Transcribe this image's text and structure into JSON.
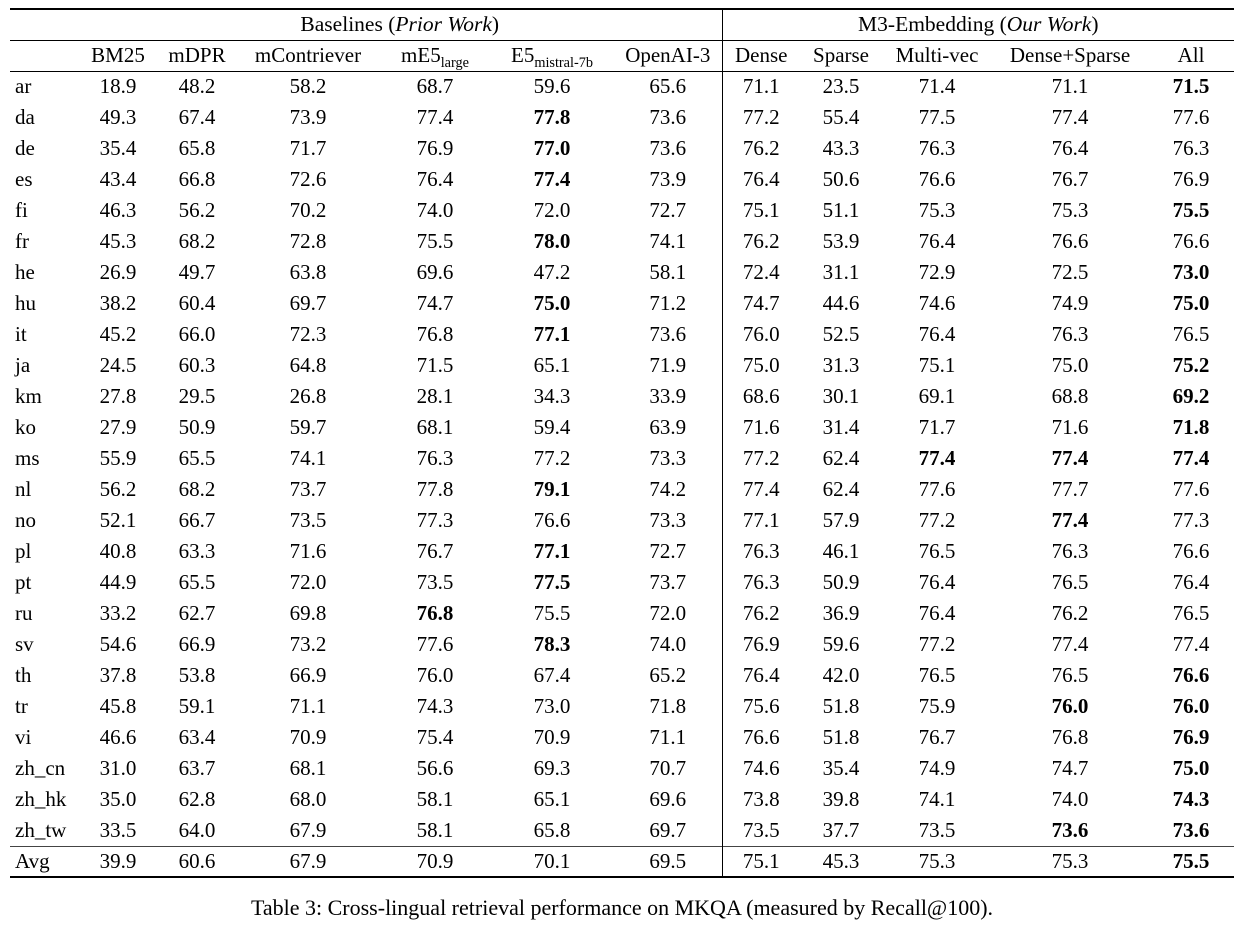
{
  "caption": "Table 3: Cross-lingual retrieval performance on MKQA (measured by Recall@100).",
  "table": {
    "groups": [
      {
        "prefix": "Baselines (",
        "italic": "Prior Work",
        "suffix": ")"
      },
      {
        "prefix": "M3-Embedding (",
        "italic": "Our Work",
        "suffix": ")"
      }
    ],
    "columns": [
      {
        "text": "BM25",
        "sub": ""
      },
      {
        "text": "mDPR",
        "sub": ""
      },
      {
        "text": "mContriever",
        "sub": ""
      },
      {
        "text": "mE5",
        "sub": "large"
      },
      {
        "text": "E5",
        "sub": "mistral-7b"
      },
      {
        "text": "OpenAI-3",
        "sub": ""
      },
      {
        "text": "Dense",
        "sub": ""
      },
      {
        "text": "Sparse",
        "sub": ""
      },
      {
        "text": "Multi-vec",
        "sub": ""
      },
      {
        "text": "Dense+Sparse",
        "sub": ""
      },
      {
        "text": "All",
        "sub": ""
      }
    ],
    "rows": [
      {
        "lang": "ar",
        "values": [
          "18.9",
          "48.2",
          "58.2",
          "68.7",
          "59.6",
          "65.6",
          "71.1",
          "23.5",
          "71.4",
          "71.1",
          "71.5"
        ],
        "bold": [
          10
        ]
      },
      {
        "lang": "da",
        "values": [
          "49.3",
          "67.4",
          "73.9",
          "77.4",
          "77.8",
          "73.6",
          "77.2",
          "55.4",
          "77.5",
          "77.4",
          "77.6"
        ],
        "bold": [
          4
        ]
      },
      {
        "lang": "de",
        "values": [
          "35.4",
          "65.8",
          "71.7",
          "76.9",
          "77.0",
          "73.6",
          "76.2",
          "43.3",
          "76.3",
          "76.4",
          "76.3"
        ],
        "bold": [
          4
        ]
      },
      {
        "lang": "es",
        "values": [
          "43.4",
          "66.8",
          "72.6",
          "76.4",
          "77.4",
          "73.9",
          "76.4",
          "50.6",
          "76.6",
          "76.7",
          "76.9"
        ],
        "bold": [
          4
        ]
      },
      {
        "lang": "fi",
        "values": [
          "46.3",
          "56.2",
          "70.2",
          "74.0",
          "72.0",
          "72.7",
          "75.1",
          "51.1",
          "75.3",
          "75.3",
          "75.5"
        ],
        "bold": [
          10
        ]
      },
      {
        "lang": "fr",
        "values": [
          "45.3",
          "68.2",
          "72.8",
          "75.5",
          "78.0",
          "74.1",
          "76.2",
          "53.9",
          "76.4",
          "76.6",
          "76.6"
        ],
        "bold": [
          4
        ]
      },
      {
        "lang": "he",
        "values": [
          "26.9",
          "49.7",
          "63.8",
          "69.6",
          "47.2",
          "58.1",
          "72.4",
          "31.1",
          "72.9",
          "72.5",
          "73.0"
        ],
        "bold": [
          10
        ]
      },
      {
        "lang": "hu",
        "values": [
          "38.2",
          "60.4",
          "69.7",
          "74.7",
          "75.0",
          "71.2",
          "74.7",
          "44.6",
          "74.6",
          "74.9",
          "75.0"
        ],
        "bold": [
          4,
          10
        ]
      },
      {
        "lang": "it",
        "values": [
          "45.2",
          "66.0",
          "72.3",
          "76.8",
          "77.1",
          "73.6",
          "76.0",
          "52.5",
          "76.4",
          "76.3",
          "76.5"
        ],
        "bold": [
          4
        ]
      },
      {
        "lang": "ja",
        "values": [
          "24.5",
          "60.3",
          "64.8",
          "71.5",
          "65.1",
          "71.9",
          "75.0",
          "31.3",
          "75.1",
          "75.0",
          "75.2"
        ],
        "bold": [
          10
        ]
      },
      {
        "lang": "km",
        "values": [
          "27.8",
          "29.5",
          "26.8",
          "28.1",
          "34.3",
          "33.9",
          "68.6",
          "30.1",
          "69.1",
          "68.8",
          "69.2"
        ],
        "bold": [
          10
        ]
      },
      {
        "lang": "ko",
        "values": [
          "27.9",
          "50.9",
          "59.7",
          "68.1",
          "59.4",
          "63.9",
          "71.6",
          "31.4",
          "71.7",
          "71.6",
          "71.8"
        ],
        "bold": [
          10
        ]
      },
      {
        "lang": "ms",
        "values": [
          "55.9",
          "65.5",
          "74.1",
          "76.3",
          "77.2",
          "73.3",
          "77.2",
          "62.4",
          "77.4",
          "77.4",
          "77.4"
        ],
        "bold": [
          8,
          9,
          10
        ]
      },
      {
        "lang": "nl",
        "values": [
          "56.2",
          "68.2",
          "73.7",
          "77.8",
          "79.1",
          "74.2",
          "77.4",
          "62.4",
          "77.6",
          "77.7",
          "77.6"
        ],
        "bold": [
          4
        ]
      },
      {
        "lang": "no",
        "values": [
          "52.1",
          "66.7",
          "73.5",
          "77.3",
          "76.6",
          "73.3",
          "77.1",
          "57.9",
          "77.2",
          "77.4",
          "77.3"
        ],
        "bold": [
          9
        ]
      },
      {
        "lang": "pl",
        "values": [
          "40.8",
          "63.3",
          "71.6",
          "76.7",
          "77.1",
          "72.7",
          "76.3",
          "46.1",
          "76.5",
          "76.3",
          "76.6"
        ],
        "bold": [
          4
        ]
      },
      {
        "lang": "pt",
        "values": [
          "44.9",
          "65.5",
          "72.0",
          "73.5",
          "77.5",
          "73.7",
          "76.3",
          "50.9",
          "76.4",
          "76.5",
          "76.4"
        ],
        "bold": [
          4
        ]
      },
      {
        "lang": "ru",
        "values": [
          "33.2",
          "62.7",
          "69.8",
          "76.8",
          "75.5",
          "72.0",
          "76.2",
          "36.9",
          "76.4",
          "76.2",
          "76.5"
        ],
        "bold": [
          3
        ]
      },
      {
        "lang": "sv",
        "values": [
          "54.6",
          "66.9",
          "73.2",
          "77.6",
          "78.3",
          "74.0",
          "76.9",
          "59.6",
          "77.2",
          "77.4",
          "77.4"
        ],
        "bold": [
          4
        ]
      },
      {
        "lang": "th",
        "values": [
          "37.8",
          "53.8",
          "66.9",
          "76.0",
          "67.4",
          "65.2",
          "76.4",
          "42.0",
          "76.5",
          "76.5",
          "76.6"
        ],
        "bold": [
          10
        ]
      },
      {
        "lang": "tr",
        "values": [
          "45.8",
          "59.1",
          "71.1",
          "74.3",
          "73.0",
          "71.8",
          "75.6",
          "51.8",
          "75.9",
          "76.0",
          "76.0"
        ],
        "bold": [
          9,
          10
        ]
      },
      {
        "lang": "vi",
        "values": [
          "46.6",
          "63.4",
          "70.9",
          "75.4",
          "70.9",
          "71.1",
          "76.6",
          "51.8",
          "76.7",
          "76.8",
          "76.9"
        ],
        "bold": [
          10
        ]
      },
      {
        "lang": "zh_cn",
        "values": [
          "31.0",
          "63.7",
          "68.1",
          "56.6",
          "69.3",
          "70.7",
          "74.6",
          "35.4",
          "74.9",
          "74.7",
          "75.0"
        ],
        "bold": [
          10
        ]
      },
      {
        "lang": "zh_hk",
        "values": [
          "35.0",
          "62.8",
          "68.0",
          "58.1",
          "65.1",
          "69.6",
          "73.8",
          "39.8",
          "74.1",
          "74.0",
          "74.3"
        ],
        "bold": [
          10
        ]
      },
      {
        "lang": "zh_tw",
        "values": [
          "33.5",
          "64.0",
          "67.9",
          "58.1",
          "65.8",
          "69.7",
          "73.5",
          "37.7",
          "73.5",
          "73.6",
          "73.6"
        ],
        "bold": [
          9,
          10
        ]
      }
    ],
    "avg_row": {
      "lang": "Avg",
      "values": [
        "39.9",
        "60.6",
        "67.9",
        "70.9",
        "70.1",
        "69.5",
        "75.1",
        "45.3",
        "75.3",
        "75.3",
        "75.5"
      ],
      "bold": [
        10
      ]
    }
  }
}
